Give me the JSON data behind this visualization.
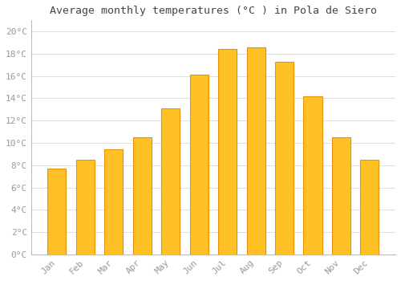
{
  "months": [
    "Jan",
    "Feb",
    "Mar",
    "Apr",
    "May",
    "Jun",
    "Jul",
    "Aug",
    "Sep",
    "Oct",
    "Nov",
    "Dec"
  ],
  "values": [
    7.7,
    8.5,
    9.4,
    10.5,
    13.1,
    16.1,
    18.4,
    18.6,
    17.3,
    14.2,
    10.5,
    8.5
  ],
  "bar_color": "#FFC125",
  "bar_edge_color": "#E8900A",
  "background_color": "#FFFFFF",
  "grid_color": "#DDDDDD",
  "title": "Average monthly temperatures (°C ) in Pola de Siero",
  "title_fontsize": 9.5,
  "tick_label_fontsize": 8,
  "tick_label_color": "#999999",
  "title_color": "#444444",
  "ylim": [
    0,
    21
  ],
  "yticks": [
    0,
    2,
    4,
    6,
    8,
    10,
    12,
    14,
    16,
    18,
    20
  ],
  "ytick_labels": [
    "0°C",
    "2°C",
    "4°C",
    "6°C",
    "8°C",
    "10°C",
    "12°C",
    "14°C",
    "16°C",
    "18°C",
    "20°C"
  ],
  "bar_width": 0.65
}
